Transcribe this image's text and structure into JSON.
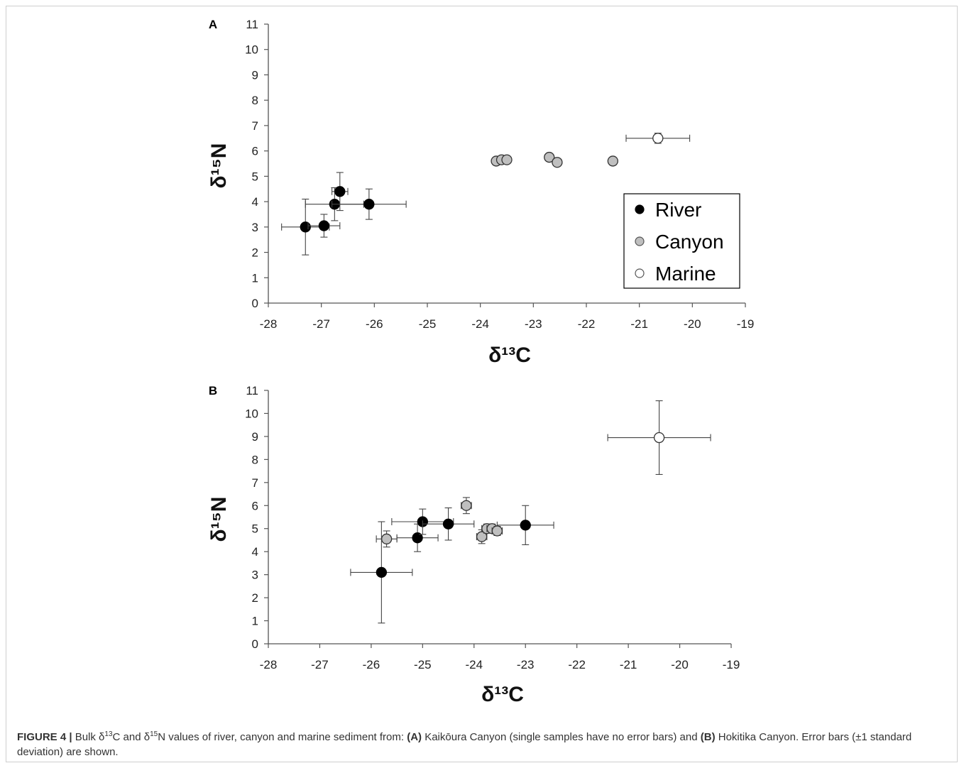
{
  "chart_data": [
    {
      "type": "scatter",
      "panel_label": "A",
      "xlabel": "δ¹³C",
      "ylabel": "δ¹⁵N",
      "xlim": [
        -28,
        -19
      ],
      "ylim": [
        0,
        11
      ],
      "x_ticks": [
        "-28",
        "-27",
        "-26",
        "-25",
        "-24",
        "-23",
        "-22",
        "-21",
        "-20",
        "-19"
      ],
      "y_ticks": [
        "0",
        "1",
        "2",
        "3",
        "4",
        "5",
        "6",
        "7",
        "8",
        "9",
        "10",
        "11"
      ],
      "grid": false,
      "legend_position": "right",
      "series": [
        {
          "name": "River",
          "color": "#000000",
          "points": [
            {
              "x": -27.3,
              "y": 3.0,
              "xerr": 0.45,
              "yerr": 1.1
            },
            {
              "x": -26.95,
              "y": 3.05,
              "xerr": 0.3,
              "yerr": 0.45
            },
            {
              "x": -26.75,
              "y": 3.9,
              "xerr": 0.55,
              "yerr": 0.65
            },
            {
              "x": -26.65,
              "y": 4.4,
              "xerr": 0.15,
              "yerr": 0.75
            },
            {
              "x": -26.1,
              "y": 3.9,
              "xerr": 0.7,
              "yerr": 0.6
            }
          ]
        },
        {
          "name": "Canyon",
          "color": "#bfbfbf",
          "points": [
            {
              "x": -23.7,
              "y": 5.6
            },
            {
              "x": -23.6,
              "y": 5.65
            },
            {
              "x": -23.5,
              "y": 5.65
            },
            {
              "x": -22.7,
              "y": 5.75
            },
            {
              "x": -22.55,
              "y": 5.55
            },
            {
              "x": -21.5,
              "y": 5.6
            }
          ]
        },
        {
          "name": "Marine",
          "color": "#ffffff",
          "points": [
            {
              "x": -20.65,
              "y": 6.5,
              "xerr": 0.6,
              "yerr": 0.2
            }
          ]
        }
      ]
    },
    {
      "type": "scatter",
      "panel_label": "B",
      "xlabel": "δ¹³C",
      "ylabel": "δ¹⁵N",
      "xlim": [
        -28,
        -19
      ],
      "ylim": [
        0,
        11
      ],
      "x_ticks": [
        "-28",
        "-27",
        "-26",
        "-25",
        "-24",
        "-23",
        "-22",
        "-21",
        "-20",
        "-19"
      ],
      "y_ticks": [
        "0",
        "1",
        "2",
        "3",
        "4",
        "5",
        "6",
        "7",
        "8",
        "9",
        "10",
        "11"
      ],
      "grid": false,
      "series": [
        {
          "name": "River",
          "color": "#000000",
          "points": [
            {
              "x": -25.8,
              "y": 3.1,
              "xerr": 0.6,
              "yerr": 2.2
            },
            {
              "x": -25.1,
              "y": 4.6,
              "xerr": 0.4,
              "yerr": 0.6
            },
            {
              "x": -25.0,
              "y": 5.3,
              "xerr": 0.6,
              "yerr": 0.55
            },
            {
              "x": -24.5,
              "y": 5.2,
              "xerr": 0.5,
              "yerr": 0.7
            },
            {
              "x": -23.0,
              "y": 5.15,
              "xerr": 0.55,
              "yerr": 0.85
            }
          ]
        },
        {
          "name": "Canyon",
          "color": "#bfbfbf",
          "points": [
            {
              "x": -25.7,
              "y": 4.55,
              "xerr": 0.2,
              "yerr": 0.35
            },
            {
              "x": -24.15,
              "y": 6.0,
              "xerr": 0.1,
              "yerr": 0.35
            },
            {
              "x": -23.85,
              "y": 4.65,
              "xerr": 0.1,
              "yerr": 0.3
            },
            {
              "x": -23.75,
              "y": 5.0,
              "xerr": 0.1,
              "yerr": 0.2
            },
            {
              "x": -23.65,
              "y": 5.0,
              "xerr": 0.1,
              "yerr": 0.2
            },
            {
              "x": -23.55,
              "y": 4.9,
              "xerr": 0.1,
              "yerr": 0.2
            }
          ]
        },
        {
          "name": "Marine",
          "color": "#ffffff",
          "points": [
            {
              "x": -20.4,
              "y": 8.95,
              "xerr": 1.0,
              "yerr": 1.6
            }
          ]
        }
      ]
    }
  ],
  "caption": {
    "figure_label": "FIGURE 4 |",
    "t1": " Bulk δ",
    "sup1": "13",
    "t2": "C and δ",
    "sup2": "15",
    "t3": "N values of river, canyon and marine sediment from: ",
    "a_label": "(A)",
    "t4": " Kaikōura Canyon (single samples have no error bars) and ",
    "b_label": "(B)",
    "t5": " Hokitika Canyon. Error bars (±1 standard deviation) are shown."
  }
}
